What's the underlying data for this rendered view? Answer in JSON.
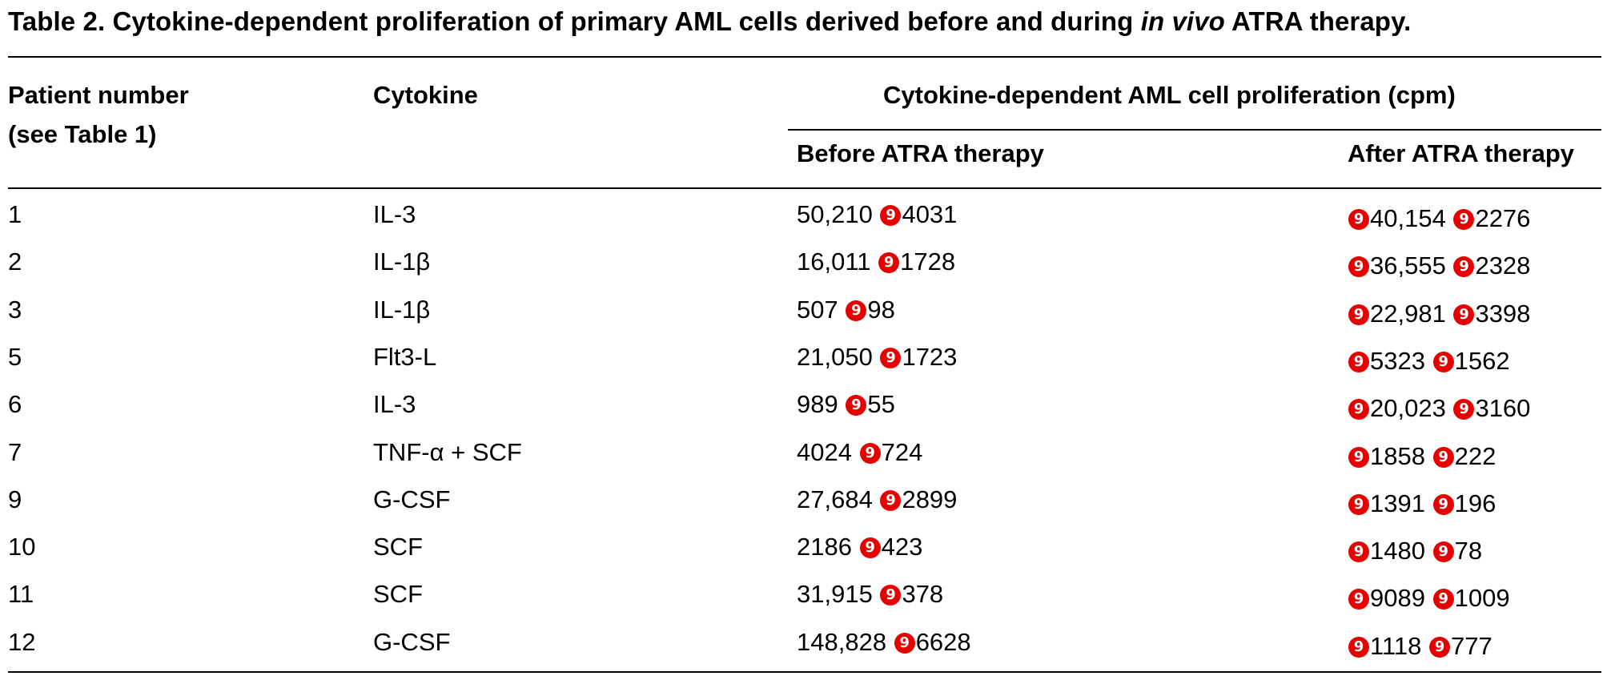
{
  "caption": {
    "prefix": "Table 2. Cytokine-dependent proliferation of primary AML cells derived before and during ",
    "italic": "in vivo",
    "suffix": " ATRA therapy."
  },
  "headers": {
    "patient_line1": "Patient number",
    "patient_line2": "(see Table 1)",
    "cytokine": "Cytokine",
    "group": "Cytokine-dependent AML cell proliferation (cpm)",
    "before": "Before ATRA therapy",
    "after": "After ATRA therapy"
  },
  "glyph": {
    "name": "red-circle-symbol-icon",
    "char": "9",
    "color": "#e60000"
  },
  "rows": [
    {
      "patient": "1",
      "cytokine": "IL-3",
      "before_mean": "50,210",
      "before_sd": "4031",
      "after_mean": "40,154",
      "after_sd": "2276"
    },
    {
      "patient": "2",
      "cytokine": "IL-1β",
      "before_mean": "16,011",
      "before_sd": "1728",
      "after_mean": "36,555",
      "after_sd": "2328"
    },
    {
      "patient": "3",
      "cytokine": "IL-1β",
      "before_mean": "507",
      "before_sd": "98",
      "after_mean": "22,981",
      "after_sd": "3398"
    },
    {
      "patient": "5",
      "cytokine": "Flt3-L",
      "before_mean": "21,050",
      "before_sd": "1723",
      "after_mean": "5323",
      "after_sd": "1562"
    },
    {
      "patient": "6",
      "cytokine": "IL-3",
      "before_mean": "989",
      "before_sd": "55",
      "after_mean": "20,023",
      "after_sd": "3160"
    },
    {
      "patient": "7",
      "cytokine": "TNF-α + SCF",
      "before_mean": "4024",
      "before_sd": "724",
      "after_mean": "1858",
      "after_sd": "222"
    },
    {
      "patient": "9",
      "cytokine": "G-CSF",
      "before_mean": "27,684",
      "before_sd": "2899",
      "after_mean": "1391",
      "after_sd": "196"
    },
    {
      "patient": "10",
      "cytokine": "SCF",
      "before_mean": "2186",
      "before_sd": "423",
      "after_mean": "1480",
      "after_sd": "78"
    },
    {
      "patient": "11",
      "cytokine": "SCF",
      "before_mean": "31,915",
      "before_sd": "378",
      "after_mean": "9089",
      "after_sd": "1009"
    },
    {
      "patient": "12",
      "cytokine": "G-CSF",
      "before_mean": "148,828",
      "before_sd": "6628",
      "after_mean": "1118",
      "after_sd": "777"
    }
  ]
}
